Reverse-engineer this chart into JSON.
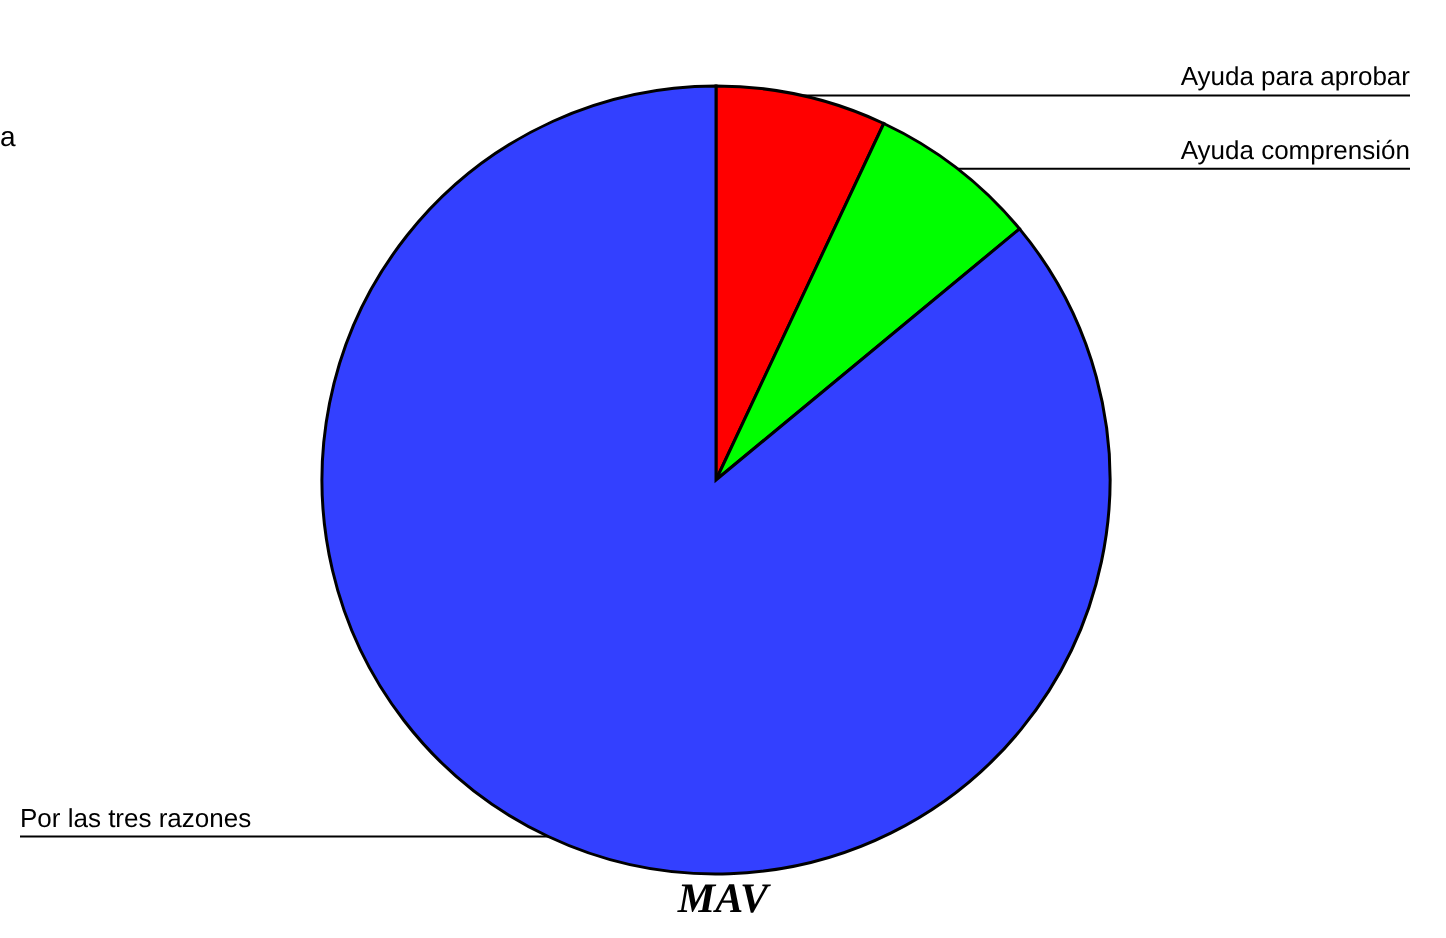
{
  "chart_data": {
    "type": "pie",
    "title": "MAV",
    "categories": [
      "Ayuda para aprobar",
      "Ayuda comprensión",
      "Por las tres razones"
    ],
    "values": [
      7,
      7,
      86
    ],
    "colors": [
      "#ff0000",
      "#00ff00",
      "#3340ff"
    ],
    "annotations": [
      "a"
    ]
  }
}
